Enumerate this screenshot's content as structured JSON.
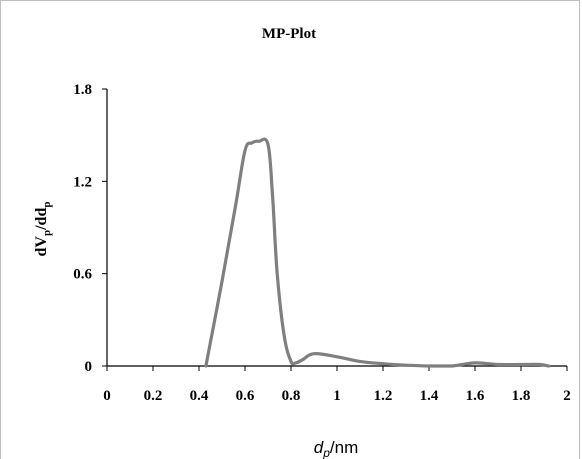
{
  "chart_data": {
    "type": "line",
    "title": "MP-Plot",
    "ylabel": {
      "main1": "dV",
      "sub1": "p",
      "mid": "/dd",
      "sub2": "p"
    },
    "xlabel": {
      "main": "d",
      "sub": "p",
      "rest": "/nm"
    },
    "xlim": [
      0,
      2
    ],
    "ylim": [
      0,
      1.8
    ],
    "x_ticks": [
      "0",
      "0.2",
      "0.4",
      "0.6",
      "0.8",
      "1",
      "1.2",
      "1.4",
      "1.6",
      "1.8",
      "2"
    ],
    "y_ticks": [
      "0",
      "0.6",
      "1.2",
      "1.8"
    ],
    "grid": false,
    "legend": "none",
    "series": [
      {
        "color": "#7f7f7f",
        "x": [
          0.43,
          0.5,
          0.56,
          0.6,
          0.63,
          0.66,
          0.7,
          0.72,
          0.74,
          0.77,
          0.8,
          0.82,
          0.85,
          0.9,
          1.0,
          1.1,
          1.2,
          1.3,
          1.4,
          1.5,
          1.6,
          1.7,
          1.8,
          1.88,
          1.92
        ],
        "y": [
          0.0,
          0.55,
          1.05,
          1.4,
          1.45,
          1.46,
          1.44,
          1.1,
          0.6,
          0.2,
          0.03,
          0.02,
          0.04,
          0.08,
          0.06,
          0.03,
          0.015,
          0.005,
          0.0,
          0.0,
          0.02,
          0.01,
          0.01,
          0.01,
          0.0
        ]
      }
    ]
  }
}
